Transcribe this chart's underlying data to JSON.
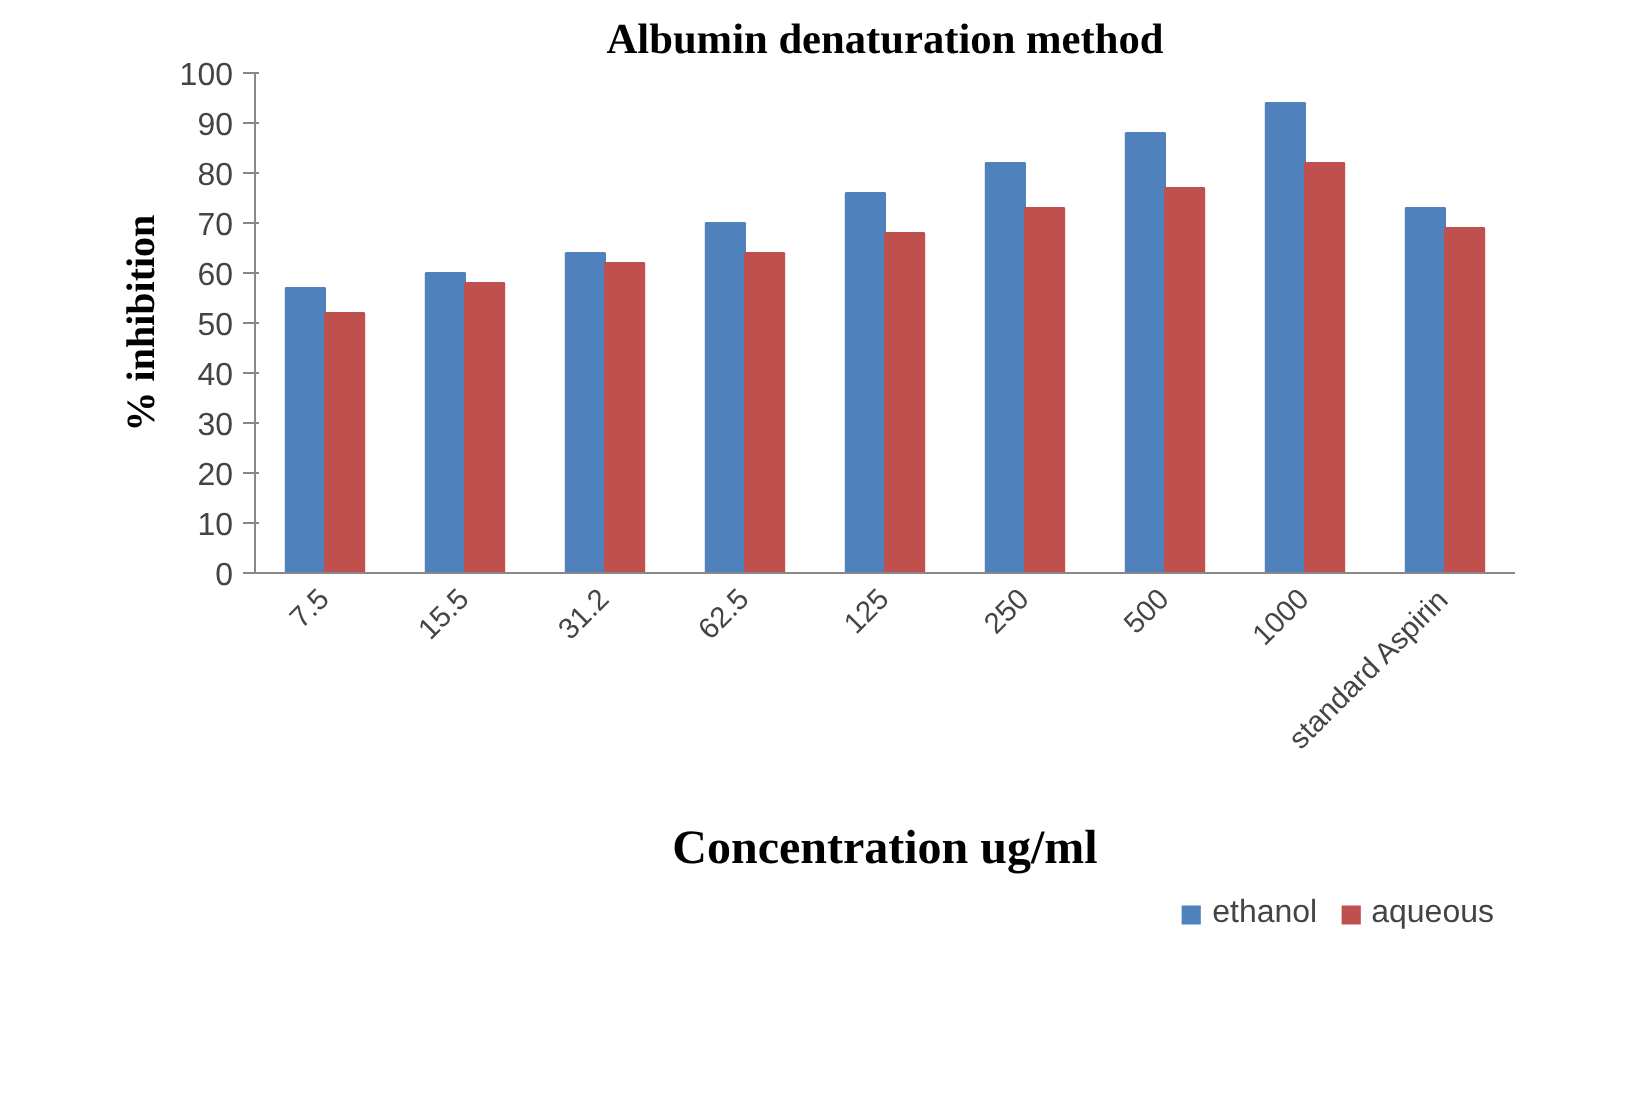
{
  "chart_data": {
    "type": "bar",
    "title": "Albumin denaturation method",
    "xlabel": "Concentration ug/ml",
    "ylabel": "% inhibition",
    "categories": [
      "7.5",
      "15.5",
      "31.2",
      "62.5",
      "125",
      "250",
      "500",
      "1000",
      "standard Aspirin"
    ],
    "series": [
      {
        "name": "ethanol",
        "color": "#4f81bd",
        "values": [
          57,
          60,
          64,
          70,
          76,
          82,
          88,
          94,
          73
        ]
      },
      {
        "name": "aqueous",
        "color": "#c0504d",
        "values": [
          52,
          58,
          62,
          64,
          68,
          73,
          77,
          82,
          69
        ]
      }
    ],
    "ylim": [
      0,
      100
    ],
    "yticks": [
      0,
      10,
      20,
      30,
      40,
      50,
      60,
      70,
      80,
      90,
      100
    ],
    "grid": false,
    "legend": "bottom right"
  }
}
